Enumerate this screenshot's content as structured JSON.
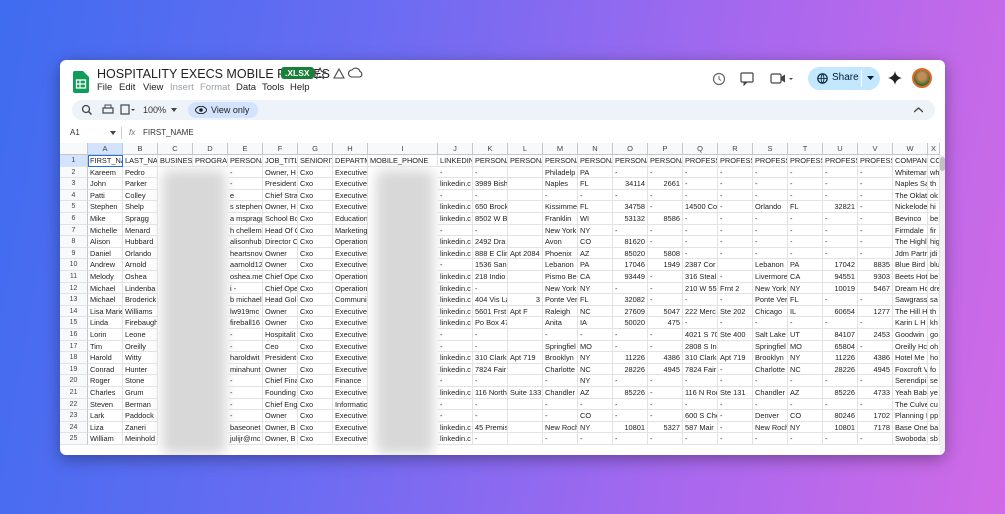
{
  "header": {
    "title": "HOSPITALITY EXECS MOBILE PHONES",
    "badge": ".XLSX",
    "menu": [
      "File",
      "Edit",
      "View",
      "Insert",
      "Format",
      "Data",
      "Tools",
      "Help"
    ],
    "share": "Share"
  },
  "toolbar": {
    "zoom": "100%",
    "mode": "View only"
  },
  "formula_bar": {
    "cell": "A1",
    "fx": "fx",
    "content": "FIRST_NAME"
  },
  "sheet": {
    "columns": [
      "A",
      "B",
      "C",
      "D",
      "E",
      "F",
      "G",
      "H",
      "I",
      "J",
      "K",
      "L",
      "M",
      "N",
      "O",
      "P",
      "Q",
      "R",
      "S",
      "T",
      "U",
      "V",
      "W",
      "X"
    ],
    "header_cells": [
      "FIRST_NA",
      "LAST_NA",
      "BUSINESS",
      "PROGRAM",
      "PERSONA",
      "JOB_TITL",
      "SENIORIT",
      "DEPARTM",
      "MOBILE_PHONE",
      "LINKEDIN",
      "PERSONA",
      "PERSONA",
      "PERSONA",
      "PERSONA",
      "PERSONA",
      "PERSONA",
      "PROFESSI",
      "PROFESSI",
      "PROFESSI",
      "PROFESSI",
      "PROFESSI",
      "PROFESSI",
      "COMPAN",
      "CO"
    ],
    "row_numbers": [
      1,
      2,
      3,
      4,
      5,
      6,
      7,
      8,
      9,
      10,
      11,
      12,
      13,
      14,
      15,
      16,
      17,
      18,
      19,
      20,
      21,
      22,
      23,
      24,
      25
    ],
    "data_columns": [
      "A",
      "B",
      "E",
      "F",
      "G",
      "H",
      "J",
      "K",
      "L",
      "M",
      "N",
      "O",
      "P",
      "Q",
      "R",
      "S",
      "T",
      "U",
      "V",
      "W",
      "X"
    ],
    "rows": [
      [
        "Kareem",
        "Pedro",
        "-",
        "Owner, H",
        "Cxo",
        "Executive",
        "-",
        "-",
        null,
        "Philadelp",
        "PA",
        "-",
        "-",
        "-",
        "-",
        "-",
        "-",
        "-",
        "-",
        "Whitemar",
        "wh"
      ],
      [
        "John",
        "Parker",
        "-",
        "President",
        "Cxo",
        "Executive",
        "linkedin.c",
        "3989 Bish",
        null,
        "Naples",
        "FL",
        34114,
        2661,
        "-",
        "-",
        "-",
        "-",
        "-",
        "-",
        "Naples Sa",
        "th"
      ],
      [
        "Patti",
        "Colley",
        "e",
        "Chief Stra",
        "Cxo",
        "Executive",
        "-",
        "-",
        null,
        "-",
        "-",
        "-",
        "-",
        "-",
        "-",
        "-",
        "-",
        "-",
        "-",
        "The Oklat",
        "ok"
      ],
      [
        "Stephen",
        "Shelp",
        "s stephen.s",
        "Owner, H",
        "Cxo",
        "Executive",
        "linkedin.c",
        "650 Brock",
        null,
        "Kissimme",
        "FL",
        34758,
        "-",
        "14500 Co",
        "-",
        "Orlando",
        "FL",
        32821,
        "-",
        "Nickelode",
        "hi"
      ],
      [
        "Mike",
        "Spragg",
        "a mspragg5",
        "School Bo",
        "Cxo",
        "Education",
        "linkedin.c",
        "8502 W B",
        null,
        "Franklin",
        "WI",
        53132,
        8586,
        "-",
        "-",
        "-",
        "-",
        "-",
        "-",
        "Bevinco",
        "be"
      ],
      [
        "Michelle",
        "Menard",
        "h chellemer",
        "Head Of C",
        "Cxo",
        "Marketing",
        "-",
        "-",
        null,
        "New York",
        "NY",
        "-",
        "-",
        "-",
        "-",
        "-",
        "-",
        "-",
        "-",
        "Firmdale",
        "fir"
      ],
      [
        "Alison",
        "Hubbard",
        "alisonhub",
        "Director C",
        "Cxo",
        "Operation",
        "linkedin.c",
        "2492 Dra",
        null,
        "Avon",
        "CO",
        81620,
        "-",
        "-",
        "-",
        "-",
        "-",
        "-",
        "-",
        "The Highl",
        "hig"
      ],
      [
        "Daniel",
        "Orlando",
        "heartsnov",
        "Owner",
        "Cxo",
        "Executive",
        "linkedin.c",
        "888 E Clin",
        "Apt 2084",
        "Phoenix",
        "AZ",
        85020,
        5808,
        "-",
        "-",
        "-",
        "-",
        "-",
        "-",
        "Jdm Partr",
        "jdi"
      ],
      [
        "Andrew",
        "Arnold",
        "aarnold12",
        "Owner",
        "Cxo",
        "Executive",
        "-",
        "1536 San",
        null,
        "Lebanon",
        "PA",
        17046,
        1949,
        "2387 Cor",
        null,
        "Lebanon",
        "PA",
        17042,
        8835,
        "Blue Bird",
        "blu"
      ],
      [
        "Melody",
        "Oshea",
        "oshea.me",
        "Chief Ope",
        "Cxo",
        "Operation",
        "linkedin.c",
        "218 Indio",
        null,
        "Pismo Be",
        "CA",
        93449,
        "-",
        "316 Steal",
        "-",
        "Livermore",
        "CA",
        94551,
        9303,
        "Beets Hot",
        "be"
      ],
      [
        "Michael",
        "Lindenba",
        "i -",
        "Chief Ope",
        "Cxo",
        "Operation",
        "linkedin.c",
        "-",
        null,
        "New York",
        "NY",
        "-",
        "-",
        "210 W 55",
        "Frnt 2",
        "New York",
        "NY",
        10019,
        5467,
        "Dream Hc",
        "dre"
      ],
      [
        "Michael",
        "Broderick",
        "b michaelc",
        "Head Gol",
        "Cxo",
        "Communi",
        "linkedin.c",
        "404 Vis La",
        3,
        "Ponte Ver",
        "FL",
        32082,
        "-",
        "-",
        "-",
        "Ponte Ver",
        "FL",
        "-",
        "-",
        "Sawgrass",
        "sa"
      ],
      [
        "Lisa Marie",
        "Williams",
        "lw919mc",
        "Owner",
        "Cxo",
        "Executive",
        "linkedin.c",
        "5601 Frst",
        "Apt F",
        "Raleigh",
        "NC",
        27609,
        5047,
        "222 Merc",
        "Ste 202",
        "Chicago",
        "IL",
        60654,
        1277,
        "The Hill H",
        "th"
      ],
      [
        "Linda",
        "Firebaugh",
        "fireball16",
        "Owner",
        "Cxo",
        "Executive",
        "linkedin.c",
        "Po Box 47",
        null,
        "Anita",
        "IA",
        50020,
        475,
        "-",
        "-",
        "-",
        "-",
        "-",
        "-",
        "Karin L H",
        "kh"
      ],
      [
        "Lorin",
        "Leone",
        "-",
        "Hospitalit",
        "Cxo",
        "Executive",
        "-",
        "-",
        null,
        "-",
        "-",
        "-",
        "-",
        "4021 S 70",
        "Ste 400",
        "Salt Lake",
        "UT",
        84107,
        2453,
        "Goodwin",
        "go"
      ],
      [
        "Tim",
        "Oreilly",
        "-",
        "Ceo",
        "Cxo",
        "Executive",
        "-",
        "-",
        null,
        "Springfiel",
        "MO",
        "-",
        "-",
        "2808 S In",
        null,
        "Springfiel",
        "MO",
        65804,
        "-",
        "Oreilly Hc",
        "oh"
      ],
      [
        "Harold",
        "Witty",
        "haroldwit",
        "President",
        "Cxo",
        "Executive",
        "linkedin.c",
        "310 Clark",
        "Apt 719",
        "Brooklyn",
        "NY",
        11226,
        4386,
        "310 Clark",
        "Apt 719",
        "Brooklyn",
        "NY",
        11226,
        4386,
        "Hotel Me",
        "ho"
      ],
      [
        "Conrad",
        "Hunter",
        "minahunt",
        "Owner",
        "Cxo",
        "Executive",
        "linkedin.c",
        "7824 Fair",
        null,
        "Charlotte",
        "NC",
        28226,
        4945,
        "7824 Fair",
        "-",
        "Charlotte",
        "NC",
        28226,
        4945,
        "Foxcroft V",
        "fo"
      ],
      [
        "Roger",
        "Stone",
        "-",
        "Chief Fina",
        "Cxo",
        "Finance",
        "-",
        "-",
        null,
        "-",
        "NY",
        "-",
        "-",
        "-",
        "-",
        "-",
        "-",
        "-",
        "-",
        "Serendipi",
        "se"
      ],
      [
        "Charles",
        "Grum",
        "-",
        "Founding",
        "Cxo",
        "Executive",
        "linkedin.c",
        "116 North",
        "Suite 133",
        "Chandler",
        "AZ",
        85226,
        "-",
        "116 N Roc",
        "Ste 131",
        "Chandler",
        "AZ",
        85226,
        4733,
        "Yeah Baby",
        "ye"
      ],
      [
        "Steven",
        "Berman",
        "-",
        "Chief Eng",
        "Cxo",
        "Informatio",
        "-",
        "-",
        null,
        "-",
        "-",
        "-",
        "-",
        "-",
        "-",
        "-",
        "-",
        "-",
        "-",
        "The Culve",
        "cu"
      ],
      [
        "Lark",
        "Paddock",
        "-",
        "Owner",
        "Cxo",
        "Executive",
        "-",
        "-",
        null,
        "-",
        "CO",
        "-",
        "-",
        "600 S Che",
        "-",
        "Denver",
        "CO",
        80246,
        1702,
        "Planning I",
        "pp"
      ],
      [
        "Liza",
        "Zaneri",
        "baseonet",
        "Owner, B",
        "Cxo",
        "Executive",
        "linkedin.c",
        "45 Premis",
        null,
        "New Roch",
        "NY",
        10801,
        5327,
        "587 Mair",
        "-",
        "New Roch",
        "NY",
        10801,
        7178,
        "Base One",
        "ba"
      ],
      [
        "William",
        "Meinhold",
        "julijr@mc",
        "Owner, B",
        "Cxo",
        "Executive",
        "linkedin.c",
        "-",
        null,
        "-",
        "-",
        "-",
        "-",
        "-",
        "-",
        "-",
        "-",
        "-",
        "-",
        "Swoboda",
        "sb"
      ]
    ]
  }
}
